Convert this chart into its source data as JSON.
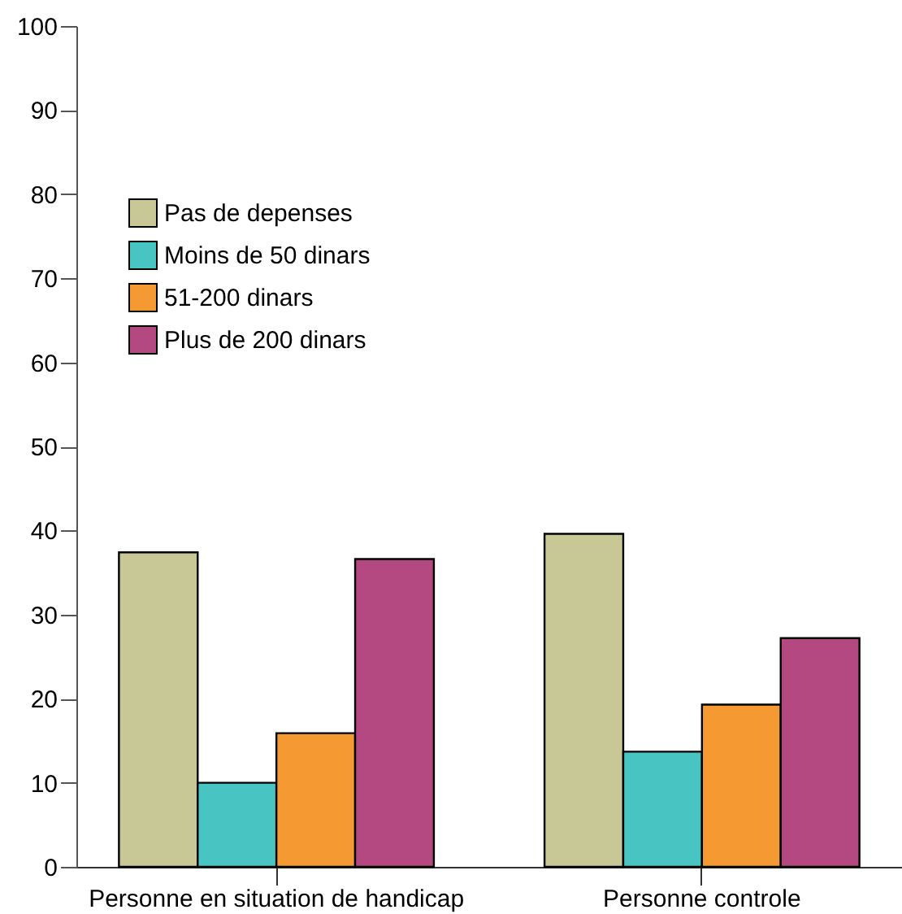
{
  "chart_data": {
    "type": "bar",
    "categories": [
      "Personne en situation de handicap",
      "Personne controle"
    ],
    "series": [
      {
        "name": "Pas de depenses",
        "color": "#c8c896",
        "values": [
          37.4,
          39.6
        ]
      },
      {
        "name": "Moins de 50 dinars",
        "color": "#48c4c2",
        "values": [
          10,
          13.7
        ]
      },
      {
        "name": "51-200 dinars",
        "color": "#f59a32",
        "values": [
          15.9,
          19.3
        ]
      },
      {
        "name": "Plus de 200 dinars",
        "color": "#b44880",
        "values": [
          36.6,
          27.2
        ]
      }
    ],
    "ylim": [
      0,
      100
    ],
    "yticks": [
      0,
      10,
      20,
      30,
      40,
      50,
      60,
      70,
      80,
      90,
      100
    ],
    "grid": false,
    "legend": "top left"
  }
}
